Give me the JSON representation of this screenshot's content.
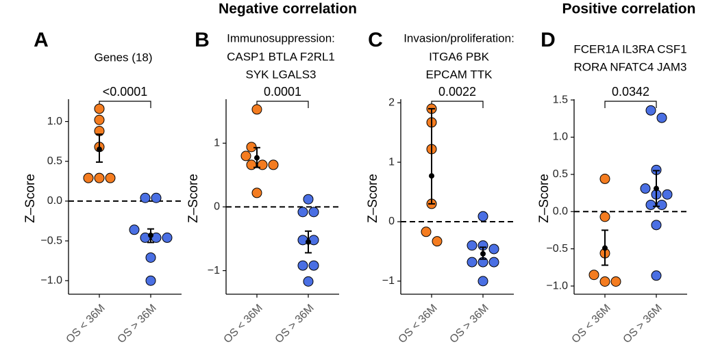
{
  "headers": [
    "Negative correlation",
    "Positive correlation"
  ],
  "chart_data": [
    {
      "type": "strip",
      "panel": "A",
      "title": [
        "Genes (18)"
      ],
      "ylabel": "Z–Score",
      "categories": [
        "OS < 36M",
        "OS > 36M"
      ],
      "pvalue": "<0.0001",
      "reference_line": 0,
      "ylim": [
        -1.17,
        1.28
      ],
      "yticks": [
        {
          "value": 1,
          "label": "1.0"
        },
        {
          "value": 0.5,
          "label": "0.5"
        },
        {
          "value": 0,
          "label": "0.0"
        },
        {
          "value": -0.5,
          "label": "−0.5"
        },
        {
          "value": -1,
          "label": "−1.0"
        }
      ],
      "series": [
        {
          "color": "#F47C20",
          "values": [
            1.16,
            1.02,
            0.88,
            0.68,
            0.29,
            0.29,
            0.29
          ],
          "mean": 0.65,
          "ci": [
            0.49,
            0.84
          ]
        },
        {
          "color": "#4A6FE3",
          "values": [
            0.04,
            0.04,
            -0.36,
            -0.46,
            -0.46,
            -0.46,
            -0.71,
            -1.0
          ],
          "mean": -0.43,
          "ci": [
            -0.52,
            -0.35
          ]
        }
      ]
    },
    {
      "type": "strip",
      "panel": "B",
      "title": [
        "Immunosuppression:",
        "CASP1 BTLA F2RL1",
        "SYK LGALS3"
      ],
      "ylabel": "Z–Score",
      "categories": [
        "OS < 36M",
        "OS > 36M"
      ],
      "pvalue": "0.0001",
      "reference_line": 0,
      "ylim": [
        -1.37,
        1.69
      ],
      "yticks": [
        1,
        0,
        {
          "value": -1,
          "label": "−1"
        }
      ],
      "series": [
        {
          "color": "#F47C20",
          "values": [
            1.53,
            0.94,
            0.8,
            0.66,
            0.66,
            0.66,
            0.22
          ],
          "mean": 0.77,
          "ci": [
            0.62,
            0.93
          ]
        },
        {
          "color": "#4A6FE3",
          "values": [
            0.12,
            -0.08,
            -0.08,
            -0.52,
            -0.52,
            -0.92,
            -0.92,
            -1.17
          ],
          "mean": -0.55,
          "ci": [
            -0.72,
            -0.38
          ]
        }
      ]
    },
    {
      "type": "strip",
      "panel": "C",
      "title": [
        "Invasion/proliferation:",
        "ITGA6 PBK",
        "EPCAM TTK"
      ],
      "ylabel": "Z–Score",
      "categories": [
        "OS < 36M",
        "OS > 36M"
      ],
      "pvalue": "0.0022",
      "reference_line": 0,
      "ylim": [
        -1.22,
        2.06
      ],
      "yticks": [
        2,
        1,
        0,
        {
          "value": -1,
          "label": "−1"
        }
      ],
      "series": [
        {
          "color": "#F47C20",
          "values": [
            1.9,
            1.67,
            1.22,
            0.3,
            -0.17,
            -0.33
          ],
          "mean": 0.77,
          "ci": [
            0.3,
            1.9
          ]
        },
        {
          "color": "#4A6FE3",
          "values": [
            0.09,
            -0.4,
            -0.4,
            -0.46,
            -0.68,
            -0.68,
            -0.68,
            -1.0
          ],
          "mean": -0.54,
          "ci": [
            -0.63,
            -0.43
          ]
        }
      ]
    },
    {
      "type": "strip",
      "panel": "D",
      "title": [
        "FCER1A IL3RA CSF1",
        "RORA NFATC4 JAM3"
      ],
      "ylabel": "Z–Score",
      "categories": [
        "OS < 36M",
        "OS > 36M"
      ],
      "pvalue": "0.0342",
      "reference_line": 0,
      "ylim": [
        -1.11,
        1.51
      ],
      "yticks": [
        1.5,
        {
          "value": 1,
          "label": "1.0"
        },
        0.5,
        {
          "value": 0,
          "label": "0.0"
        },
        {
          "value": -0.5,
          "label": "−0.5"
        },
        {
          "value": -1,
          "label": "−1.0"
        }
      ],
      "series": [
        {
          "color": "#F47C20",
          "values": [
            0.44,
            -0.07,
            -0.56,
            -0.85,
            -0.94,
            -0.94
          ],
          "mean": -0.49,
          "ci": [
            -0.72,
            -0.25
          ]
        },
        {
          "color": "#4A6FE3",
          "values": [
            1.36,
            1.26,
            0.56,
            0.31,
            0.23,
            0.23,
            0.09,
            0.09,
            -0.18,
            -0.86
          ],
          "mean": 0.31,
          "ci": [
            0.07,
            0.55
          ]
        }
      ]
    }
  ]
}
